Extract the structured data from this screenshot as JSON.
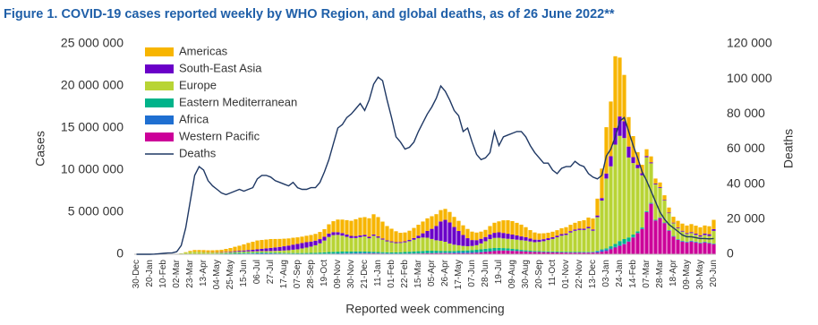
{
  "chart_data": {
    "type": "bar",
    "stacked": true,
    "title": "Figure 1. COVID-19 cases reported weekly by WHO Region, and global deaths, as of 26 June 2022**",
    "x_label": "Reported week commencing",
    "y_label": "Cases",
    "y2_label": "Deaths",
    "legend": "upper-left",
    "grid": false,
    "categories": [
      "30-Dec",
      null,
      null,
      "20-Jan",
      null,
      null,
      "10-Feb",
      null,
      null,
      "02-Mar",
      null,
      null,
      "23-Mar",
      null,
      null,
      "13-Apr",
      null,
      null,
      "04-May",
      null,
      null,
      "25-May",
      null,
      null,
      "15-Jun",
      null,
      null,
      "06-Jul",
      null,
      null,
      "27-Jul",
      null,
      null,
      "17-Aug",
      null,
      null,
      "07-Sep",
      null,
      null,
      "28-Sep",
      null,
      null,
      "19-Oct",
      null,
      null,
      "09-Nov",
      null,
      null,
      "30-Nov",
      null,
      null,
      "21-Dec",
      null,
      null,
      "11-Jan",
      null,
      null,
      "01-Feb",
      null,
      null,
      "22-Feb",
      null,
      null,
      "15-Mar",
      null,
      null,
      "05-Apr",
      null,
      null,
      "26-Apr",
      null,
      null,
      "17-May",
      null,
      null,
      "07-Jun",
      null,
      null,
      "28-Jun",
      null,
      null,
      "19-Jul",
      null,
      null,
      "09-Aug",
      null,
      null,
      "30-Aug",
      null,
      null,
      "20-Sep",
      null,
      null,
      "11-Oct",
      null,
      null,
      "01-Nov",
      null,
      null,
      "22-Nov",
      null,
      null,
      "13-Dec",
      null,
      null,
      "03-Jan",
      null,
      null,
      "24-Jan",
      null,
      null,
      "14-Feb",
      null,
      null,
      "07-Mar",
      null,
      null,
      "28-Mar",
      null,
      null,
      "18-Apr",
      null,
      null,
      "09-May",
      null,
      null,
      "30-May",
      null,
      null,
      "20-Jun"
    ],
    "ylim": [
      0,
      25000000
    ],
    "yticks": [
      0,
      {
        "value": 5000000,
        "label": "5 000 000"
      },
      {
        "value": 10000000,
        "label": "10 000 000"
      },
      {
        "value": 15000000,
        "label": "15 000 000"
      },
      {
        "value": 20000000,
        "label": "20 000 000"
      },
      {
        "value": 25000000,
        "label": "25 000 000"
      }
    ],
    "y2lim": [
      0,
      120000
    ],
    "y2ticks": [
      0,
      {
        "value": 20000,
        "label": "20 000"
      },
      {
        "value": 40000,
        "label": "40 000"
      },
      {
        "value": 60000,
        "label": "60 000"
      },
      {
        "value": 80000,
        "label": "80 000"
      },
      {
        "value": 100000,
        "label": "100 000"
      },
      {
        "value": 120000,
        "label": "120 000"
      }
    ],
    "series": [
      {
        "name": "Americas",
        "color": "#f7b500",
        "values": [
          0,
          0,
          0,
          0,
          0,
          0,
          0,
          0,
          0,
          1000,
          5000,
          40000,
          120000,
          200000,
          210000,
          230000,
          220000,
          230000,
          250000,
          280000,
          350000,
          420000,
          520000,
          600000,
          720000,
          850000,
          950000,
          1050000,
          1050000,
          1050000,
          1050000,
          1000000,
          950000,
          900000,
          850000,
          820000,
          780000,
          750000,
          760000,
          780000,
          800000,
          850000,
          900000,
          1100000,
          1300000,
          1500000,
          1600000,
          1700000,
          1800000,
          2000000,
          2100000,
          2100000,
          2200000,
          2400000,
          2300000,
          2000000,
          1700000,
          1500000,
          1300000,
          1100000,
          1050000,
          1100000,
          1200000,
          1300000,
          1400000,
          1500000,
          1500000,
          1400000,
          1350000,
          1300000,
          1250000,
          1200000,
          1200000,
          1150000,
          1100000,
          1000000,
          900000,
          850000,
          850000,
          1000000,
          1200000,
          1300000,
          1500000,
          1600000,
          1600000,
          1500000,
          1400000,
          1200000,
          1000000,
          850000,
          750000,
          700000,
          650000,
          650000,
          650000,
          700000,
          750000,
          750000,
          800000,
          900000,
          1000000,
          1100000,
          1300000,
          2000000,
          3500000,
          5500000,
          6500000,
          8500000,
          7000000,
          5500000,
          3500000,
          2500000,
          1500000,
          1000000,
          800000,
          700000,
          600000,
          550000,
          550000,
          600000,
          700000,
          800000,
          850000,
          900000,
          950000,
          950000,
          950000,
          950000,
          950000,
          1100000
        ]
      },
      {
        "name": "South-East Asia",
        "color": "#6a00c8",
        "values": [
          0,
          0,
          0,
          0,
          0,
          0,
          0,
          0,
          0,
          0,
          0,
          0,
          1000,
          5000,
          8000,
          12000,
          20000,
          30000,
          40000,
          50000,
          60000,
          70000,
          90000,
          110000,
          130000,
          160000,
          190000,
          230000,
          270000,
          320000,
          370000,
          410000,
          450000,
          500000,
          550000,
          600000,
          640000,
          650000,
          640000,
          600000,
          550000,
          500000,
          450000,
          400000,
          350000,
          320000,
          300000,
          280000,
          250000,
          230000,
          210000,
          190000,
          170000,
          160000,
          150000,
          130000,
          120000,
          110000,
          110000,
          110000,
          120000,
          150000,
          200000,
          300000,
          500000,
          800000,
          1200000,
          1700000,
          2300000,
          2600000,
          2500000,
          2100000,
          1700000,
          1300000,
          950000,
          700000,
          600000,
          550000,
          500000,
          550000,
          600000,
          650000,
          650000,
          600000,
          550000,
          500000,
          450000,
          400000,
          350000,
          300000,
          260000,
          240000,
          220000,
          200000,
          190000,
          180000,
          170000,
          160000,
          150000,
          150000,
          150000,
          170000,
          150000,
          200000,
          300000,
          600000,
          1200000,
          2000000,
          2300000,
          2000000,
          1300000,
          700000,
          400000,
          250000,
          150000,
          120000,
          100000,
          90000,
          80000,
          80000,
          80000,
          90000,
          100000,
          110000,
          120000,
          140000,
          160000,
          180000,
          200000,
          210000
        ]
      },
      {
        "name": "Europe",
        "color": "#b8d435",
        "values": [
          0,
          0,
          0,
          0,
          0,
          0,
          0,
          0,
          5000,
          40000,
          90000,
          180000,
          250000,
          260000,
          240000,
          200000,
          170000,
          140000,
          120000,
          110000,
          110000,
          110000,
          120000,
          130000,
          140000,
          150000,
          150000,
          160000,
          170000,
          180000,
          200000,
          230000,
          260000,
          300000,
          340000,
          400000,
          450000,
          550000,
          650000,
          750000,
          900000,
          1100000,
          1400000,
          1800000,
          2000000,
          2000000,
          1900000,
          1750000,
          1600000,
          1600000,
          1700000,
          1800000,
          1600000,
          1900000,
          1700000,
          1500000,
          1300000,
          1200000,
          1100000,
          1100000,
          1150000,
          1250000,
          1400000,
          1550000,
          1600000,
          1550000,
          1400000,
          1250000,
          1200000,
          1100000,
          900000,
          750000,
          650000,
          550000,
          500000,
          500000,
          550000,
          700000,
          900000,
          1100000,
          1200000,
          1200000,
          1150000,
          1150000,
          1150000,
          1150000,
          1150000,
          1150000,
          1100000,
          1050000,
          1100000,
          1200000,
          1350000,
          1500000,
          1700000,
          1900000,
          2000000,
          2300000,
          2500000,
          2600000,
          2600000,
          2800000,
          2500000,
          4000000,
          5800000,
          8300000,
          9500000,
          11800000,
          12500000,
          12000000,
          9500000,
          8500000,
          7500000,
          6200000,
          6400000,
          4700000,
          4200000,
          3500000,
          2600000,
          2000000,
          1500000,
          1300000,
          1100000,
          900000,
          900000,
          800000,
          700000,
          800000,
          800000,
          1500000
        ]
      },
      {
        "name": "Eastern Mediterranean",
        "color": "#00b38a",
        "values": [
          0,
          0,
          0,
          0,
          0,
          0,
          0,
          0,
          5000,
          10000,
          10000,
          15000,
          20000,
          25000,
          30000,
          40000,
          45000,
          55000,
          65000,
          75000,
          90000,
          110000,
          120000,
          125000,
          120000,
          110000,
          100000,
          95000,
          90000,
          85000,
          80000,
          75000,
          75000,
          75000,
          80000,
          85000,
          90000,
          95000,
          100000,
          110000,
          120000,
          140000,
          160000,
          180000,
          190000,
          200000,
          200000,
          190000,
          180000,
          170000,
          160000,
          150000,
          140000,
          130000,
          120000,
          120000,
          125000,
          130000,
          140000,
          160000,
          180000,
          200000,
          220000,
          240000,
          260000,
          280000,
          270000,
          250000,
          220000,
          200000,
          180000,
          170000,
          170000,
          180000,
          200000,
          230000,
          260000,
          300000,
          320000,
          330000,
          320000,
          300000,
          270000,
          240000,
          210000,
          180000,
          150000,
          130000,
          110000,
          100000,
          90000,
          85000,
          80000,
          80000,
          80000,
          80000,
          80000,
          80000,
          80000,
          80000,
          70000,
          60000,
          50000,
          60000,
          80000,
          150000,
          250000,
          350000,
          500000,
          550000,
          450000,
          300000,
          200000,
          150000,
          100000,
          80000,
          70000,
          60000,
          50000,
          45000,
          40000,
          35000,
          35000,
          35000,
          35000,
          40000,
          40000,
          40000,
          40000,
          40000
        ]
      },
      {
        "name": "Africa",
        "color": "#1f6fd1",
        "values": [
          0,
          0,
          0,
          0,
          0,
          0,
          0,
          0,
          0,
          0,
          0,
          0,
          2000,
          3000,
          4000,
          5000,
          7000,
          10000,
          12000,
          15000,
          20000,
          25000,
          30000,
          40000,
          50000,
          60000,
          70000,
          80000,
          90000,
          80000,
          70000,
          60000,
          50000,
          40000,
          35000,
          30000,
          25000,
          25000,
          25000,
          25000,
          25000,
          30000,
          35000,
          40000,
          45000,
          50000,
          60000,
          70000,
          80000,
          90000,
          100000,
          90000,
          80000,
          70000,
          60000,
          50000,
          40000,
          35000,
          30000,
          30000,
          30000,
          30000,
          30000,
          30000,
          30000,
          30000,
          30000,
          35000,
          40000,
          50000,
          70000,
          100000,
          130000,
          140000,
          130000,
          110000,
          90000,
          70000,
          60000,
          50000,
          45000,
          40000,
          35000,
          30000,
          30000,
          25000,
          20000,
          20000,
          20000,
          20000,
          20000,
          20000,
          20000,
          20000,
          20000,
          20000,
          20000,
          20000,
          20000,
          20000,
          30000,
          40000,
          50000,
          150000,
          200000,
          150000,
          100000,
          80000,
          70000,
          60000,
          50000,
          40000,
          30000,
          30000,
          30000,
          30000,
          30000,
          30000,
          30000,
          30000,
          40000,
          50000,
          60000,
          70000,
          80000,
          70000,
          60000,
          50000,
          40000,
          40000
        ]
      },
      {
        "name": "Western Pacific",
        "color": "#cc0099",
        "values": [
          0,
          0,
          1000,
          10000,
          20000,
          17000,
          12000,
          4000,
          3000,
          7000,
          7000,
          8000,
          8000,
          10000,
          12000,
          10000,
          8000,
          7000,
          7000,
          7000,
          8000,
          9000,
          10000,
          12000,
          15000,
          18000,
          22000,
          25000,
          30000,
          35000,
          40000,
          40000,
          38000,
          35000,
          30000,
          28000,
          25000,
          25000,
          25000,
          25000,
          25000,
          30000,
          35000,
          40000,
          45000,
          55000,
          60000,
          65000,
          70000,
          75000,
          80000,
          85000,
          90000,
          95000,
          90000,
          80000,
          70000,
          60000,
          55000,
          55000,
          60000,
          70000,
          80000,
          90000,
          100000,
          110000,
          120000,
          130000,
          140000,
          140000,
          130000,
          120000,
          120000,
          120000,
          130000,
          150000,
          180000,
          220000,
          270000,
          320000,
          380000,
          420000,
          430000,
          420000,
          400000,
          380000,
          350000,
          320000,
          290000,
          270000,
          260000,
          250000,
          240000,
          230000,
          220000,
          210000,
          200000,
          190000,
          190000,
          190000,
          190000,
          190000,
          200000,
          200000,
          300000,
          400000,
          600000,
          800000,
          1000000,
          1200000,
          1500000,
          2000000,
          2500000,
          3000000,
          5000000,
          6000000,
          4000000,
          4300000,
          3700000,
          2800000,
          2100000,
          1700000,
          1500000,
          1400000,
          1500000,
          1400000,
          1300000,
          1400000,
          1300000,
          1200000
        ]
      },
      {
        "name": "Deaths",
        "color": "#1f3864",
        "type": "line",
        "axis": "y2",
        "values": [
          0,
          0,
          0,
          0,
          100,
          300,
          500,
          700,
          800,
          1500,
          5000,
          15000,
          30000,
          45000,
          50000,
          48000,
          42000,
          39000,
          37000,
          35000,
          34000,
          35000,
          36000,
          37000,
          36000,
          37000,
          38000,
          43000,
          45000,
          45000,
          44000,
          42000,
          41000,
          40000,
          39000,
          41000,
          38000,
          37000,
          37000,
          38000,
          38000,
          41000,
          47000,
          54000,
          63000,
          72000,
          74000,
          78000,
          80000,
          83000,
          86000,
          82000,
          88000,
          97000,
          101000,
          99000,
          88000,
          78000,
          67000,
          64000,
          60000,
          61000,
          64000,
          70000,
          75000,
          80000,
          84000,
          89000,
          96000,
          93000,
          88000,
          82000,
          79000,
          70000,
          72000,
          64000,
          57000,
          54000,
          55000,
          58000,
          70000,
          62000,
          67000,
          68000,
          69000,
          70000,
          70000,
          67000,
          62000,
          58000,
          55000,
          52000,
          52000,
          48000,
          46000,
          49000,
          50000,
          50000,
          53000,
          51000,
          50000,
          46000,
          44000,
          43000,
          45000,
          56000,
          60000,
          67000,
          76000,
          78000,
          70000,
          62000,
          55000,
          47000,
          42000,
          36000,
          30000,
          24000,
          20000,
          17000,
          15000,
          13000,
          11000,
          10000,
          10000,
          9500,
          9000,
          9000,
          8800,
          9000
        ]
      }
    ]
  }
}
